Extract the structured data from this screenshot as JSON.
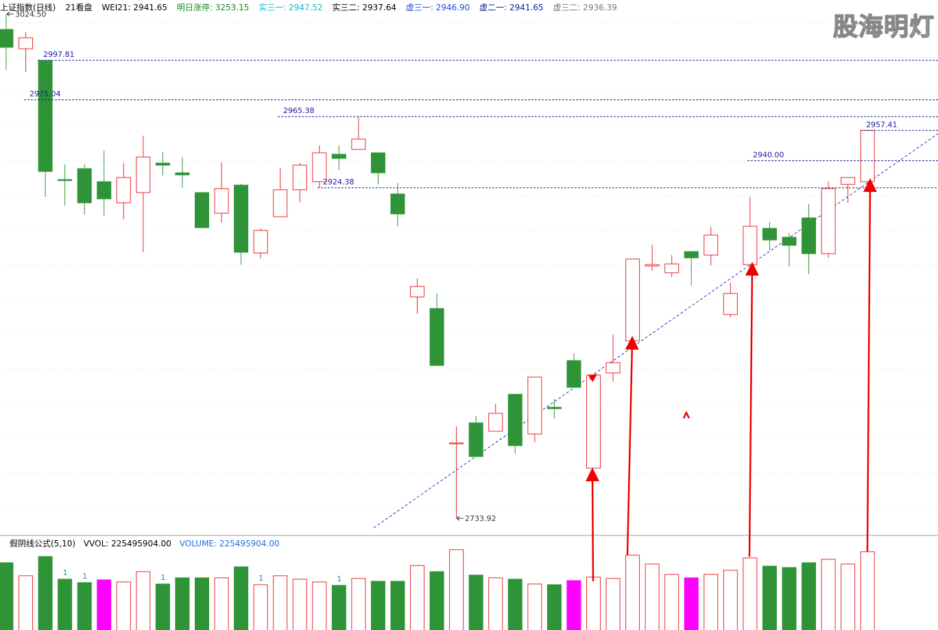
{
  "chart_data": {
    "type": "candlestick",
    "title": "上证指数(日线)",
    "indicators": [
      "21看盘",
      "WEI21: 2941.65",
      "明日涨停: 3253.15",
      "实三一: 2947.52",
      "实三二: 2937.64",
      "虚三一: 2946.90",
      "虚二一: 2941.65",
      "虚三二: 2936.39"
    ],
    "watermark": "股海明灯",
    "open": [
      3015.6,
      3004.5,
      2997.8,
      2929.1,
      2935.4,
      2927.9,
      2915.7,
      2921.6,
      2938.6,
      2933.0,
      2921.6,
      2909.7,
      2925.9,
      2886.8,
      2907.7,
      2923.2,
      2927.9,
      2943.7,
      2946.5,
      2944.5,
      2920.8,
      2861.5,
      2854.8,
      2777.4,
      2788.9,
      2784.1,
      2805.4,
      2782.5,
      2797.9,
      2824.8,
      2762.8,
      2817.7,
      2836.2,
      2879.3,
      2875.4,
      2887.6,
      2885.6,
      2851.3,
      2880.1,
      2901.0,
      2895.9,
      2907.0,
      2886.4,
      2926.3,
      2927.9
    ],
    "high": [
      3024.5,
      3014.0,
      2997.81,
      2937.8,
      2937.8,
      2945.7,
      2938.6,
      2954.4,
      2944.9,
      2942.1,
      2921.6,
      2939.0,
      2926.7,
      2901.0,
      2935.8,
      2938.6,
      2948.8,
      2948.8,
      2965.38,
      2944.5,
      2927.1,
      2872.2,
      2863.5,
      2786.9,
      2792.8,
      2799.9,
      2805.4,
      2815.3,
      2802.7,
      2829.1,
      2816.5,
      2839.8,
      2883.3,
      2891.6,
      2885.6,
      2888.0,
      2901.8,
      2869.8,
      2919.2,
      2904.6,
      2898.3,
      2914.9,
      2927.9,
      2930.3,
      2957.41
    ],
    "low": [
      2992.3,
      2991.1,
      2919.2,
      2914.1,
      2908.9,
      2908.1,
      2906.2,
      2887.2,
      2931.5,
      2924.3,
      2901.4,
      2904.2,
      2880.1,
      2883.7,
      2907.7,
      2916.0,
      2924.38,
      2934.6,
      2946.5,
      2926.3,
      2902.2,
      2851.7,
      2822.0,
      2733.92,
      2769.5,
      2784.1,
      2771.1,
      2777.8,
      2791.2,
      2809.4,
      2762.8,
      2812.6,
      2836.2,
      2876.5,
      2873.0,
      2867.9,
      2879.7,
      2849.7,
      2880.1,
      2888.4,
      2878.9,
      2874.6,
      2884.0,
      2915.7,
      2925.5
    ],
    "close": [
      3005.3,
      3010.8,
      2933.8,
      2929.0,
      2915.7,
      2918.0,
      2930.3,
      2942.1,
      2937.4,
      2931.8,
      2901.4,
      2923.9,
      2887.2,
      2899.8,
      2923.2,
      2937.4,
      2944.5,
      2941.3,
      2952.4,
      2933.0,
      2909.3,
      2867.5,
      2822.0,
      2777.4,
      2769.5,
      2794.4,
      2775.8,
      2815.3,
      2797.1,
      2809.4,
      2816.5,
      2823.6,
      2883.3,
      2880.1,
      2880.5,
      2884.0,
      2897.1,
      2863.5,
      2902.2,
      2894.3,
      2891.2,
      2886.4,
      2923.9,
      2930.3,
      2957.41
    ],
    "up_color": "#e8262a",
    "down_color": "#2f9437",
    "ylim": [
      2724.47,
      3032.57
    ],
    "levels": [
      {
        "value": 2997.81,
        "label": "2997.81"
      },
      {
        "value": 2975.04,
        "label": "2975.04"
      },
      {
        "value": 2965.38,
        "label": "2965.38"
      },
      {
        "value": 2957.41,
        "label": "2957.41"
      },
      {
        "value": 2940,
        "label": "2940.00"
      },
      {
        "value": 2924.38,
        "label": "2924.38"
      }
    ],
    "extremes": [
      {
        "value": 3024.5,
        "label": "3024.50"
      },
      {
        "value": 2733.92,
        "label": "2733.92"
      }
    ],
    "volume_title": "假阴线公式(5,10)",
    "volume_indicators": [
      "VVOL: 225495904.00",
      "VOLUME: 225495904.00"
    ],
    "volume": [
      193800000,
      156300000,
      211600000,
      146400000,
      136500000,
      144400000,
      138500000,
      168100000,
      132500000,
      150300000,
      150300000,
      150300000,
      182000000,
      130500000,
      156300000,
      146400000,
      138500000,
      128600000,
      148400000,
      140400000,
      140400000,
      185900000,
      168100000,
      231400000,
      158200000,
      150300000,
      146400000,
      132500000,
      130500000,
      142400000,
      152300000,
      148400000,
      215600000,
      189900000,
      160200000,
      150300000,
      160200000,
      172100000,
      207700000,
      184000000,
      180000000,
      193800000,
      203700000,
      189900000,
      225495904
    ],
    "volume_colors": [
      "#2f9437",
      "#e8262a",
      "#2f9437",
      "#2f9437",
      "#2f9437",
      "#ff00ff",
      "#e8262a",
      "#e8262a",
      "#2f9437",
      "#2f9437",
      "#2f9437",
      "#e8262a",
      "#2f9437",
      "#e8262a",
      "#e8262a",
      "#e8262a",
      "#e8262a",
      "#2f9437",
      "#e8262a",
      "#2f9437",
      "#2f9437",
      "#e8262a",
      "#2f9437",
      "#e8262a",
      "#2f9437",
      "#e8262a",
      "#2f9437",
      "#e8262a",
      "#2f9437",
      "#ff00ff",
      "#e8262a",
      "#e8262a",
      "#e8262a",
      "#e8262a",
      "#e8262a",
      "#ff00ff",
      "#e8262a",
      "#e8262a",
      "#e8262a",
      "#2f9437",
      "#2f9437",
      "#2f9437",
      "#e8262a",
      "#e8262a",
      "#e8262a"
    ],
    "volume_notes": [
      null,
      null,
      null,
      1,
      1,
      null,
      null,
      null,
      1,
      null,
      null,
      null,
      null,
      1,
      null,
      null,
      null,
      1,
      null,
      null,
      null,
      null,
      null,
      null,
      null,
      null,
      null,
      null,
      null,
      null,
      null,
      null,
      null,
      null,
      null,
      null,
      null,
      null,
      null,
      null,
      null,
      null,
      null,
      null,
      null
    ],
    "volume_ylim": [
      0,
      237000000
    ]
  }
}
